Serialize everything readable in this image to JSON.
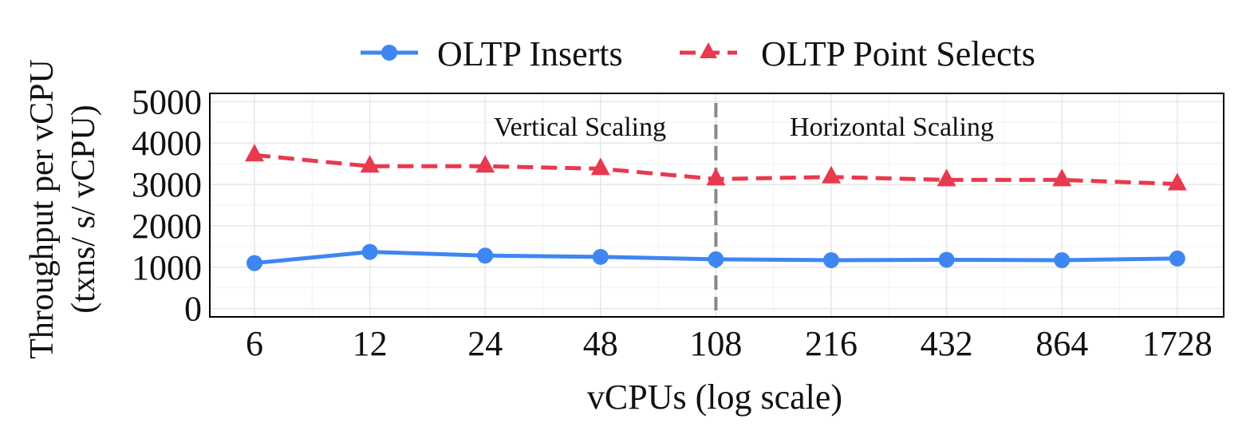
{
  "chart_data": {
    "type": "line",
    "x": [
      "6",
      "12",
      "24",
      "48",
      "108",
      "216",
      "432",
      "864",
      "1728"
    ],
    "xlabel": "vCPUs (log scale)",
    "ylabel": [
      "Throughput per vCPU",
      "(txns/ s/ vCPU)"
    ],
    "ylim": [
      -200,
      5200
    ],
    "yticks": [
      0,
      1000,
      2000,
      3000,
      4000,
      5000
    ],
    "grid": true,
    "legend_position": "top-center",
    "series": [
      {
        "name": "OLTP Inserts",
        "color": "#3e86f1",
        "line_style": "solid",
        "marker": "circle",
        "values": [
          1100,
          1370,
          1280,
          1250,
          1190,
          1170,
          1180,
          1170,
          1210
        ]
      },
      {
        "name": "OLTP Point Selects",
        "color": "#e8394f",
        "line_style": "dashed",
        "marker": "triangle",
        "values": [
          3710,
          3440,
          3440,
          3380,
          3130,
          3180,
          3110,
          3110,
          3010
        ]
      }
    ],
    "divider": {
      "at_x": "108",
      "color": "#888888",
      "line_style": "dashed"
    },
    "annotations": [
      "Vertical Scaling",
      "Horizontal Scaling"
    ]
  }
}
